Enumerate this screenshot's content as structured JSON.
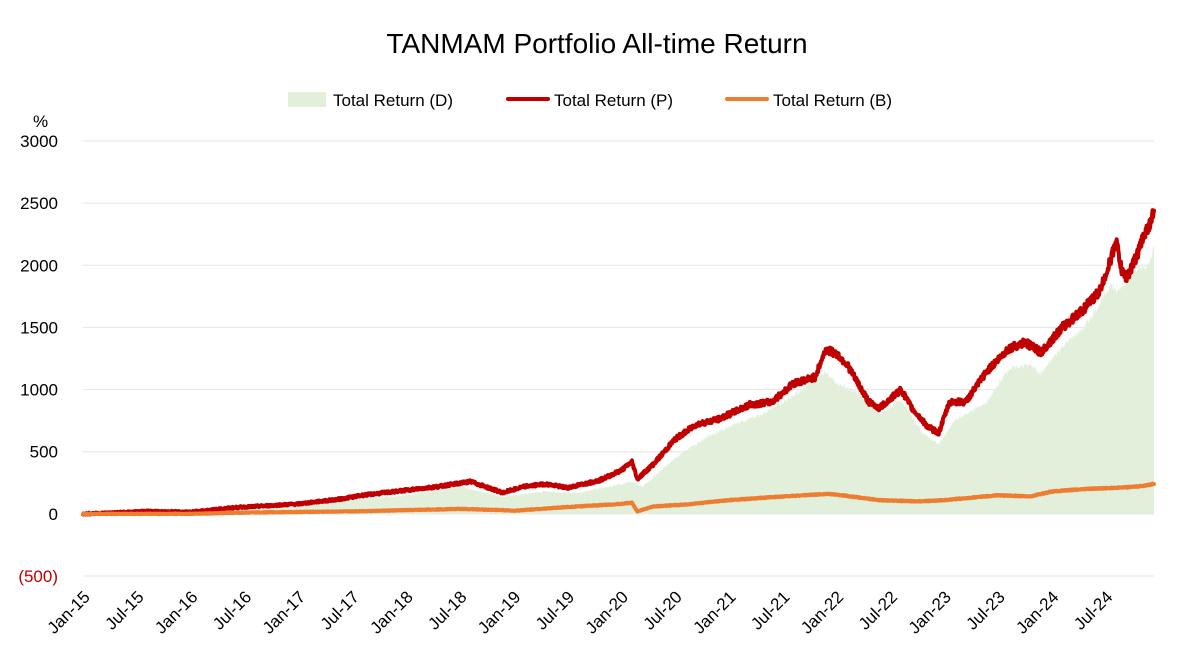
{
  "chart_data": {
    "type": "area+line",
    "title": "TANMAM Portfolio All-time Return",
    "ylabel": "%",
    "ylim": [
      -500,
      3000
    ],
    "yticks": [
      {
        "value": 3000,
        "label": "3000"
      },
      {
        "value": 2500,
        "label": "2500"
      },
      {
        "value": 2000,
        "label": "2000"
      },
      {
        "value": 1500,
        "label": "1500"
      },
      {
        "value": 1000,
        "label": "1000"
      },
      {
        "value": 500,
        "label": "500"
      },
      {
        "value": 0,
        "label": "0"
      },
      {
        "value": -500,
        "label": "(500)"
      }
    ],
    "xlim": [
      2015.0,
      2024.95
    ],
    "xticks": [
      {
        "value": 2015.0,
        "label": "Jan-15"
      },
      {
        "value": 2015.5,
        "label": "Jul-15"
      },
      {
        "value": 2016.0,
        "label": "Jan-16"
      },
      {
        "value": 2016.5,
        "label": "Jul-16"
      },
      {
        "value": 2017.0,
        "label": "Jan-17"
      },
      {
        "value": 2017.5,
        "label": "Jul-17"
      },
      {
        "value": 2018.0,
        "label": "Jan-18"
      },
      {
        "value": 2018.5,
        "label": "Jul-18"
      },
      {
        "value": 2019.0,
        "label": "Jan-19"
      },
      {
        "value": 2019.5,
        "label": "Jul-19"
      },
      {
        "value": 2020.0,
        "label": "Jan-20"
      },
      {
        "value": 2020.5,
        "label": "Jul-20"
      },
      {
        "value": 2021.0,
        "label": "Jan-21"
      },
      {
        "value": 2021.5,
        "label": "Jul-21"
      },
      {
        "value": 2022.0,
        "label": "Jan-22"
      },
      {
        "value": 2022.5,
        "label": "Jul-22"
      },
      {
        "value": 2023.0,
        "label": "Jan-23"
      },
      {
        "value": 2023.5,
        "label": "Jul-23"
      },
      {
        "value": 2024.0,
        "label": "Jan-24"
      },
      {
        "value": 2024.5,
        "label": "Jul-24"
      }
    ],
    "legend_position": "top",
    "series": [
      {
        "name": "Total Return (D)",
        "style": "area",
        "color": "#e2efda",
        "points": [
          [
            2015.0,
            0
          ],
          [
            2015.5,
            10
          ],
          [
            2016.0,
            10
          ],
          [
            2016.5,
            40
          ],
          [
            2017.0,
            60
          ],
          [
            2017.5,
            110
          ],
          [
            2018.0,
            150
          ],
          [
            2018.5,
            220
          ],
          [
            2018.9,
            140
          ],
          [
            2019.3,
            180
          ],
          [
            2019.6,
            170
          ],
          [
            2020.0,
            240
          ],
          [
            2020.1,
            260
          ],
          [
            2020.2,
            220
          ],
          [
            2020.5,
            450
          ],
          [
            2020.8,
            620
          ],
          [
            2021.0,
            700
          ],
          [
            2021.3,
            800
          ],
          [
            2021.6,
            950
          ],
          [
            2021.9,
            1150
          ],
          [
            2022.0,
            1050
          ],
          [
            2022.2,
            980
          ],
          [
            2022.4,
            800
          ],
          [
            2022.6,
            920
          ],
          [
            2022.8,
            650
          ],
          [
            2022.95,
            560
          ],
          [
            2023.1,
            750
          ],
          [
            2023.4,
            900
          ],
          [
            2023.6,
            1170
          ],
          [
            2023.8,
            1200
          ],
          [
            2023.9,
            1130
          ],
          [
            2024.1,
            1350
          ],
          [
            2024.3,
            1500
          ],
          [
            2024.45,
            1700
          ],
          [
            2024.55,
            1850
          ],
          [
            2024.6,
            1780
          ],
          [
            2024.75,
            1950
          ],
          [
            2024.9,
            2000
          ],
          [
            2024.95,
            2150
          ]
        ]
      },
      {
        "name": "Total Return (P)",
        "style": "line",
        "color": "#c00000",
        "points": [
          [
            2015.0,
            0
          ],
          [
            2015.3,
            10
          ],
          [
            2015.6,
            20
          ],
          [
            2016.0,
            15
          ],
          [
            2016.4,
            50
          ],
          [
            2016.8,
            70
          ],
          [
            2017.0,
            80
          ],
          [
            2017.4,
            120
          ],
          [
            2017.6,
            150
          ],
          [
            2018.0,
            190
          ],
          [
            2018.3,
            220
          ],
          [
            2018.6,
            260
          ],
          [
            2018.9,
            170
          ],
          [
            2019.1,
            220
          ],
          [
            2019.3,
            240
          ],
          [
            2019.5,
            210
          ],
          [
            2019.8,
            270
          ],
          [
            2020.0,
            350
          ],
          [
            2020.1,
            420
          ],
          [
            2020.15,
            280
          ],
          [
            2020.3,
            400
          ],
          [
            2020.5,
            600
          ],
          [
            2020.7,
            720
          ],
          [
            2020.9,
            760
          ],
          [
            2021.0,
            800
          ],
          [
            2021.2,
            880
          ],
          [
            2021.4,
            900
          ],
          [
            2021.6,
            1050
          ],
          [
            2021.8,
            1100
          ],
          [
            2021.9,
            1320
          ],
          [
            2022.0,
            1290
          ],
          [
            2022.1,
            1200
          ],
          [
            2022.3,
            900
          ],
          [
            2022.4,
            850
          ],
          [
            2022.6,
            1000
          ],
          [
            2022.7,
            850
          ],
          [
            2022.85,
            700
          ],
          [
            2022.95,
            650
          ],
          [
            2023.05,
            900
          ],
          [
            2023.2,
            900
          ],
          [
            2023.4,
            1150
          ],
          [
            2023.6,
            1330
          ],
          [
            2023.75,
            1380
          ],
          [
            2023.9,
            1300
          ],
          [
            2024.1,
            1500
          ],
          [
            2024.3,
            1650
          ],
          [
            2024.45,
            1800
          ],
          [
            2024.55,
            2050
          ],
          [
            2024.6,
            2200
          ],
          [
            2024.65,
            1950
          ],
          [
            2024.7,
            1900
          ],
          [
            2024.8,
            2100
          ],
          [
            2024.85,
            2230
          ],
          [
            2024.92,
            2350
          ],
          [
            2024.95,
            2440
          ]
        ]
      },
      {
        "name": "Total Return (B)",
        "style": "line",
        "color": "#ed7d31",
        "points": [
          [
            2015.0,
            0
          ],
          [
            2015.5,
            0
          ],
          [
            2016.0,
            0
          ],
          [
            2016.5,
            10
          ],
          [
            2017.0,
            15
          ],
          [
            2017.5,
            20
          ],
          [
            2018.0,
            30
          ],
          [
            2018.5,
            40
          ],
          [
            2018.9,
            30
          ],
          [
            2019.0,
            25
          ],
          [
            2019.5,
            55
          ],
          [
            2020.0,
            80
          ],
          [
            2020.1,
            90
          ],
          [
            2020.15,
            20
          ],
          [
            2020.3,
            60
          ],
          [
            2020.6,
            75
          ],
          [
            2021.0,
            110
          ],
          [
            2021.5,
            140
          ],
          [
            2021.9,
            160
          ],
          [
            2022.0,
            155
          ],
          [
            2022.4,
            110
          ],
          [
            2022.75,
            100
          ],
          [
            2023.0,
            110
          ],
          [
            2023.5,
            150
          ],
          [
            2023.8,
            140
          ],
          [
            2024.0,
            180
          ],
          [
            2024.3,
            200
          ],
          [
            2024.6,
            210
          ],
          [
            2024.8,
            220
          ],
          [
            2024.95,
            240
          ]
        ]
      }
    ]
  }
}
